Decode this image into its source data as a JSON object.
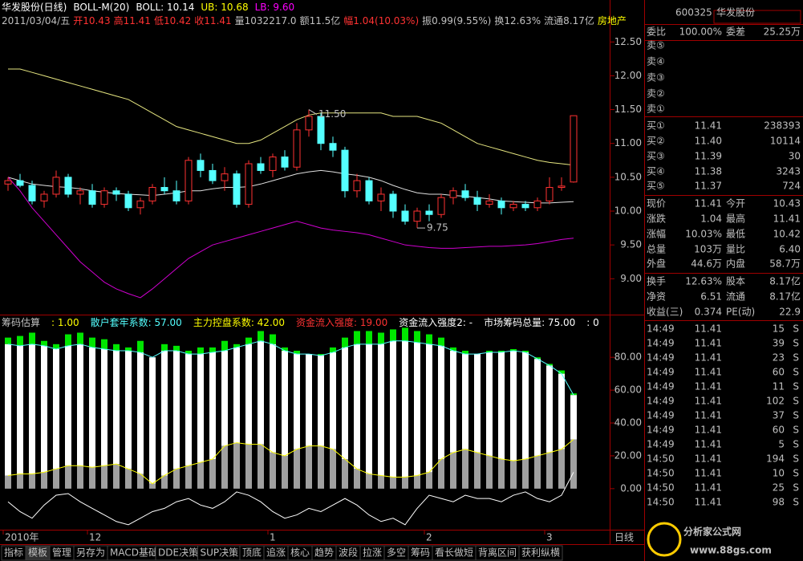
{
  "header": {
    "line1": [
      "华发股份(日线)",
      "BOLL-M(20)",
      "BOLL: 10.14",
      "UB: 10.68",
      "LB: 9.60"
    ],
    "line2": [
      "2011/03/04/五",
      "开10.43",
      "高11.41",
      "低10.42",
      "收11.41",
      "量1032217.0",
      "额11.5亿",
      "幅1.04(10.03%)",
      "振0.99(9.55%)",
      "换12.63%",
      "流通8.17亿",
      "房地产"
    ]
  },
  "price_chart": {
    "ylim": [
      8.47,
      13.12
    ],
    "yticks": [
      {
        "value": 12.5,
        "label": "12.50"
      },
      {
        "value": 12,
        "label": "12.00"
      },
      {
        "value": 11.5,
        "label": "11.50"
      },
      {
        "value": 11,
        "label": "11.00"
      },
      {
        "value": 10.5,
        "label": "10.50"
      },
      {
        "value": 10,
        "label": "10.00"
      },
      {
        "value": 9.5,
        "label": "9.50"
      },
      {
        "value": 9,
        "label": "9.00"
      }
    ],
    "candles": [
      [
        10.4,
        10.5,
        10.3,
        10.45
      ],
      [
        10.45,
        10.55,
        10.35,
        10.38
      ],
      [
        10.38,
        10.45,
        10.1,
        10.15
      ],
      [
        10.15,
        10.3,
        10.05,
        10.25
      ],
      [
        10.25,
        10.6,
        10.2,
        10.5
      ],
      [
        10.5,
        10.55,
        10.2,
        10.25
      ],
      [
        10.25,
        10.35,
        10.1,
        10.3
      ],
      [
        10.3,
        10.4,
        10.05,
        10.1
      ],
      [
        10.1,
        10.35,
        10.05,
        10.3
      ],
      [
        10.3,
        10.35,
        10.15,
        10.25
      ],
      [
        10.25,
        10.3,
        10.0,
        10.05
      ],
      [
        10.05,
        10.2,
        9.95,
        10.15
      ],
      [
        10.15,
        10.4,
        10.1,
        10.35
      ],
      [
        10.35,
        10.5,
        10.25,
        10.3
      ],
      [
        10.3,
        10.45,
        10.1,
        10.15
      ],
      [
        10.15,
        10.8,
        10.1,
        10.75
      ],
      [
        10.75,
        10.85,
        10.5,
        10.6
      ],
      [
        10.6,
        10.7,
        10.4,
        10.45
      ],
      [
        10.45,
        10.65,
        10.3,
        10.55
      ],
      [
        10.55,
        10.6,
        10.05,
        10.1
      ],
      [
        10.1,
        10.75,
        10.05,
        10.7
      ],
      [
        10.7,
        10.8,
        10.55,
        10.6
      ],
      [
        10.6,
        10.85,
        10.5,
        10.8
      ],
      [
        10.8,
        10.9,
        10.6,
        10.65
      ],
      [
        10.65,
        11.3,
        10.6,
        11.2
      ],
      [
        11.2,
        11.5,
        11.1,
        11.4
      ],
      [
        11.4,
        11.45,
        10.9,
        11.0
      ],
      [
        11.0,
        11.1,
        10.8,
        10.9
      ],
      [
        10.9,
        10.95,
        10.2,
        10.3
      ],
      [
        10.3,
        10.55,
        10.2,
        10.45
      ],
      [
        10.45,
        10.5,
        10.1,
        10.15
      ],
      [
        10.15,
        10.35,
        10.0,
        10.25
      ],
      [
        10.25,
        10.3,
        9.9,
        10.0
      ],
      [
        10.0,
        10.1,
        9.8,
        9.85
      ],
      [
        9.85,
        10.05,
        9.75,
        10.0
      ],
      [
        10.0,
        10.1,
        9.85,
        9.95
      ],
      [
        9.95,
        10.25,
        9.9,
        10.2
      ],
      [
        10.2,
        10.35,
        10.1,
        10.3
      ],
      [
        10.3,
        10.4,
        10.15,
        10.2
      ],
      [
        10.2,
        10.3,
        10.0,
        10.1
      ],
      [
        10.1,
        10.25,
        10.05,
        10.15
      ],
      [
        10.15,
        10.2,
        9.95,
        10.05
      ],
      [
        10.05,
        10.15,
        10.0,
        10.1
      ],
      [
        10.1,
        10.15,
        10.0,
        10.05
      ],
      [
        10.05,
        10.2,
        10.0,
        10.15
      ],
      [
        10.15,
        10.5,
        10.1,
        10.35
      ],
      [
        10.35,
        10.5,
        10.3,
        10.37
      ],
      [
        10.43,
        11.41,
        10.42,
        11.41
      ]
    ],
    "boll_upper": [
      12.1,
      12.1,
      12.05,
      12.0,
      11.95,
      11.9,
      11.85,
      11.8,
      11.75,
      11.7,
      11.65,
      11.55,
      11.45,
      11.35,
      11.25,
      11.2,
      11.15,
      11.1,
      11.05,
      11.0,
      11.0,
      11.05,
      11.15,
      11.25,
      11.35,
      11.42,
      11.45,
      11.45,
      11.45,
      11.45,
      11.45,
      11.45,
      11.4,
      11.4,
      11.4,
      11.35,
      11.3,
      11.2,
      11.1,
      11.0,
      10.95,
      10.9,
      10.85,
      10.8,
      10.75,
      10.72,
      10.7,
      10.68
    ],
    "boll_mid": [
      10.5,
      10.45,
      10.4,
      10.38,
      10.36,
      10.35,
      10.33,
      10.3,
      10.28,
      10.26,
      10.25,
      10.24,
      10.23,
      10.25,
      10.27,
      10.3,
      10.3,
      10.33,
      10.35,
      10.35,
      10.36,
      10.4,
      10.45,
      10.5,
      10.55,
      10.58,
      10.6,
      10.58,
      10.55,
      10.53,
      10.5,
      10.45,
      10.38,
      10.32,
      10.27,
      10.25,
      10.25,
      10.23,
      10.22,
      10.2,
      10.18,
      10.15,
      10.14,
      10.13,
      10.12,
      10.12,
      10.13,
      10.14
    ],
    "boll_lower": [
      10.5,
      10.3,
      10.05,
      9.85,
      9.65,
      9.45,
      9.25,
      9.1,
      8.95,
      8.85,
      8.78,
      8.72,
      8.85,
      9.0,
      9.15,
      9.3,
      9.4,
      9.5,
      9.55,
      9.6,
      9.65,
      9.7,
      9.75,
      9.8,
      9.85,
      9.8,
      9.75,
      9.72,
      9.7,
      9.68,
      9.65,
      9.6,
      9.55,
      9.5,
      9.48,
      9.46,
      9.45,
      9.45,
      9.46,
      9.47,
      9.48,
      9.48,
      9.49,
      9.5,
      9.52,
      9.55,
      9.58,
      9.6
    ],
    "annotations": [
      {
        "index": 25,
        "value": 11.5,
        "label": "11.50"
      },
      {
        "index": 34,
        "value": 9.75,
        "label": "9.75"
      }
    ]
  },
  "indicator": {
    "header": [
      "筹码估算",
      ": 1.00",
      "散户套牢系数: 57.00",
      "主力控盘系数: 42.00",
      "资金流入强度: 19.00",
      "资金流入强度2: -",
      "市场筹码总量: 75.00",
      ": 0"
    ],
    "ylim": [
      -25,
      106
    ],
    "yticks": [
      {
        "value": 80,
        "label": "80.00"
      },
      {
        "value": 60,
        "label": "60.00"
      },
      {
        "value": 40,
        "label": "40.00"
      },
      {
        "value": 20,
        "label": "20.00"
      },
      {
        "value": 0,
        "label": "0.00"
      }
    ],
    "total": [
      92,
      93,
      95,
      90,
      88,
      94,
      95,
      92,
      91,
      88,
      86,
      90,
      80,
      88,
      87,
      84,
      86,
      86,
      90,
      88,
      92,
      96,
      94,
      86,
      84,
      82,
      82,
      86,
      92,
      96,
      96,
      95,
      97,
      98,
      96,
      94,
      92,
      86,
      84,
      82,
      84,
      84,
      85,
      84,
      80,
      76,
      72,
      58
    ],
    "cyan": [
      88,
      87,
      88,
      87,
      85,
      87,
      88,
      86,
      85,
      84,
      84,
      83,
      80,
      84,
      84,
      82,
      82,
      83,
      84,
      86,
      88,
      90,
      88,
      84,
      82,
      82,
      81,
      83,
      86,
      88,
      88,
      88,
      90,
      90,
      89,
      88,
      87,
      84,
      82,
      82,
      83,
      83,
      84,
      83,
      79,
      75,
      70,
      57
    ],
    "yellow": [
      8,
      9,
      9,
      10,
      12,
      14,
      14,
      13,
      14,
      15,
      12,
      9,
      3,
      8,
      12,
      14,
      16,
      18,
      26,
      28,
      27,
      27,
      22,
      20,
      24,
      26,
      26,
      24,
      18,
      12,
      9,
      8,
      7,
      7,
      8,
      10,
      18,
      22,
      24,
      22,
      20,
      18,
      17,
      18,
      20,
      22,
      24,
      30
    ],
    "white": [
      -8,
      -14,
      -18,
      -10,
      -4,
      -3,
      -8,
      -12,
      -16,
      -20,
      -22,
      -18,
      -14,
      -12,
      -8,
      -6,
      -10,
      -12,
      -8,
      -2,
      -4,
      -8,
      -14,
      -18,
      -16,
      -12,
      -14,
      -10,
      -6,
      -10,
      -16,
      -20,
      -18,
      -22,
      -12,
      -4,
      -6,
      -8,
      -4,
      -6,
      -6,
      -8,
      -4,
      -2,
      -6,
      -8,
      -4,
      10
    ]
  },
  "date_axis": [
    {
      "index": 0,
      "label": "2010年"
    },
    {
      "index": 7,
      "label": "12"
    },
    {
      "index": 22,
      "label": "1"
    },
    {
      "index": 35,
      "label": "2"
    },
    {
      "index": 45,
      "label": "3"
    }
  ],
  "period": "日线",
  "tabs": [
    "指标",
    "模板",
    "管理",
    "另存为",
    "MACD基础",
    "DDE决策",
    "SUP决策",
    "顶底",
    "追涨",
    "核心",
    "趋势",
    "波段",
    "拉涨",
    "多空",
    "筹码",
    "看长做短",
    "背离区间",
    "获利纵横"
  ],
  "right_panel": {
    "code": "600325",
    "name": "华发股份",
    "weibi": [
      "委比",
      "100.00%",
      "委差",
      "25.25万"
    ],
    "sell": [
      "卖⑤",
      "卖④",
      "卖③",
      "卖②",
      "卖①"
    ],
    "buy": [
      [
        "买①",
        "11.41",
        "238393"
      ],
      [
        "买②",
        "11.40",
        "10114"
      ],
      [
        "买③",
        "11.39",
        "30"
      ],
      [
        "买④",
        "11.38",
        "3243"
      ],
      [
        "买⑤",
        "11.37",
        "724"
      ]
    ],
    "quote": [
      [
        "现价",
        "11.41",
        "今开",
        "10.43"
      ],
      [
        "涨跌",
        "1.04",
        "最高",
        "11.41"
      ],
      [
        "涨幅",
        "10.03%",
        "最低",
        "10.42"
      ],
      [
        "总量",
        "103万",
        "量比",
        "6.40"
      ],
      [
        "外盘",
        "44.6万",
        "内盘",
        "58.7万"
      ],
      [
        "换手",
        "12.63%",
        "股本",
        "8.17亿"
      ],
      [
        "净资",
        "6.51",
        "流通",
        "8.17亿"
      ],
      [
        "收益(三)",
        "0.374",
        "PE(动)",
        "22.9"
      ]
    ],
    "trades": [
      [
        "14:49",
        "11.41",
        "15",
        "S"
      ],
      [
        "14:49",
        "11.41",
        "39",
        "S"
      ],
      [
        "14:49",
        "11.41",
        "23",
        "S"
      ],
      [
        "14:49",
        "11.41",
        "60",
        "S"
      ],
      [
        "14:49",
        "11.41",
        "11",
        "S"
      ],
      [
        "14:49",
        "11.41",
        "102",
        "S"
      ],
      [
        "14:49",
        "11.41",
        "37",
        "S"
      ],
      [
        "14:49",
        "11.41",
        "60",
        "S"
      ],
      [
        "14:49",
        "11.41",
        "5",
        "S"
      ],
      [
        "14:50",
        "11.41",
        "194",
        "S"
      ],
      [
        "14:50",
        "11.41",
        "10",
        "S"
      ],
      [
        "14:50",
        "11.41",
        "25",
        "S"
      ],
      [
        "14:50",
        "11.41",
        "98",
        "S"
      ]
    ]
  },
  "watermark": [
    "分析家公式网",
    "www.88gs.com"
  ]
}
